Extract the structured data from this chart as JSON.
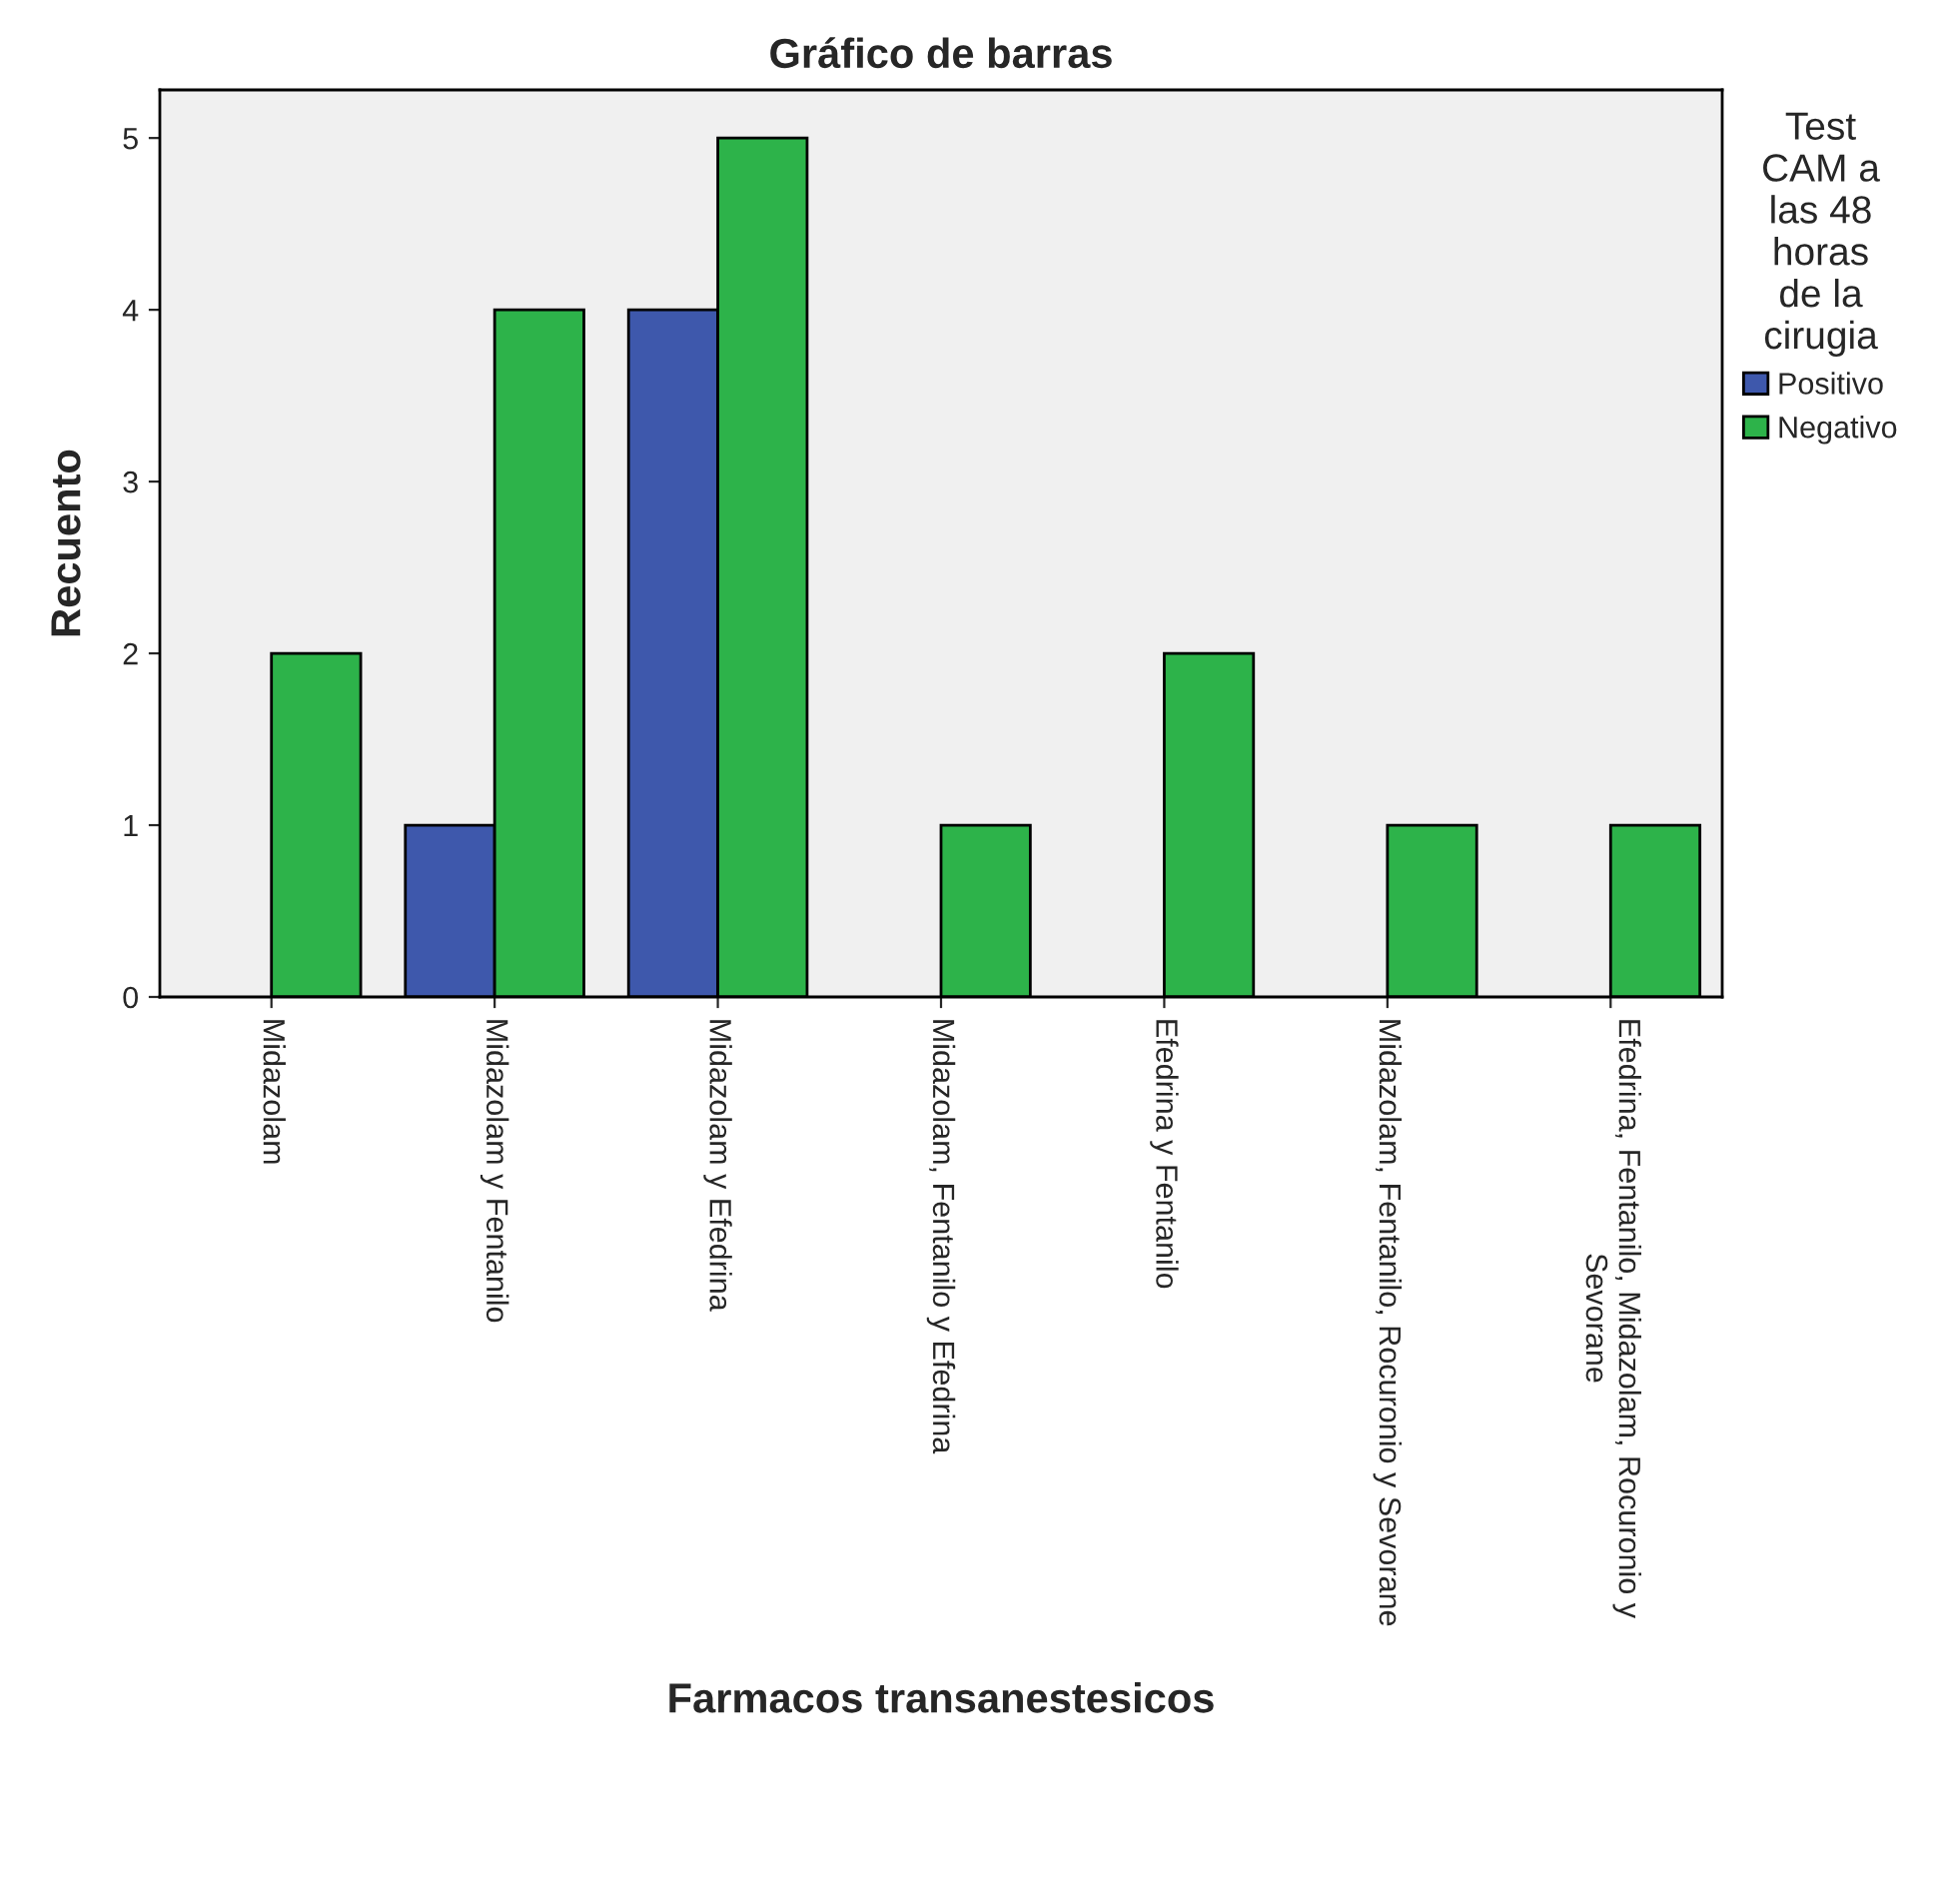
{
  "chart_data": {
    "type": "bar",
    "title": "Gráfico de barras",
    "xlabel": "Farmacos transanestesicos",
    "ylabel": "Recuento",
    "legend_title": "Test CAM a las 48 horas de la cirugia",
    "legend": "right",
    "categories": [
      "Midazolam",
      "Midazolam y Fentanilo",
      "Midazolam y Efedrina",
      "Midazolam, Fentanilo y Efedrina",
      "Efedrina y Fentanilo",
      "Midazolam, Fentanilo, Rocuronio y Sevorane",
      "Efedrina, Fentanilo, Midazolam, Rocuronio y Sevorane"
    ],
    "series": [
      {
        "name": "Positivo",
        "color": "#3e58ac",
        "values": [
          null,
          1,
          4,
          null,
          null,
          null,
          null
        ]
      },
      {
        "name": "Negativo",
        "color": "#2db34a",
        "values": [
          2,
          4,
          5,
          1,
          2,
          1,
          1
        ]
      }
    ],
    "ylim": [
      0,
      5.28
    ],
    "yticks": [
      0,
      1,
      2,
      3,
      4,
      5
    ],
    "grid": false
  }
}
